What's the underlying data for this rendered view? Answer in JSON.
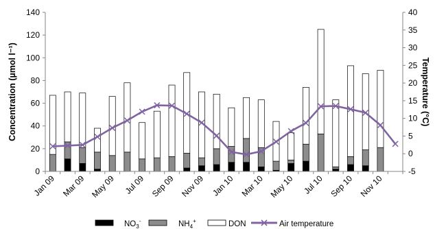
{
  "chart_data": {
    "type": "bar",
    "stacked": true,
    "categories": [
      "Jan 09",
      "Feb 09",
      "Mar 09",
      "Apr 09",
      "May 09",
      "Jun 09",
      "Jul 09",
      "Aug 09",
      "Sep 09",
      "Oct 09",
      "Nov 09",
      "Dec 09",
      "Jan 10",
      "Feb 10",
      "Mar 10",
      "Apr 10",
      "May 10",
      "Jun 10",
      "Jul 10",
      "Aug 10",
      "Sep 10",
      "Oct 10",
      "Nov 10",
      "Dec 10"
    ],
    "x_tick_labels": [
      "Jan 09",
      "Mar 09",
      "May 09",
      "Jul 09",
      "Sep 09",
      "Nov 09",
      "Jan 10",
      "Mar 10",
      "May 10",
      "Jul 10",
      "Sep 10",
      "Nov 10"
    ],
    "series": [
      {
        "name": "NO3-",
        "color": "#000000",
        "values": [
          0,
          11,
          7,
          2,
          0,
          0,
          0,
          0,
          0,
          3,
          5,
          6,
          8,
          8,
          4,
          1,
          7,
          9,
          0,
          2,
          6,
          5,
          0,
          0
        ]
      },
      {
        "name": "NH4+",
        "color": "#8c8c8c",
        "values": [
          15,
          15,
          14,
          15,
          14,
          17,
          11,
          12,
          13,
          13,
          7,
          14,
          14,
          21,
          17,
          8,
          3,
          15,
          33,
          2,
          7,
          14,
          21,
          0
        ]
      },
      {
        "name": "DON",
        "color": "#ffffff",
        "values": [
          52,
          44,
          48,
          21,
          52,
          61,
          32,
          41,
          63,
          71,
          58,
          48,
          34,
          36,
          42,
          35,
          24,
          50,
          92,
          59,
          80,
          67,
          68,
          0
        ]
      }
    ],
    "bar_indices": [
      0,
      1,
      2,
      3,
      4,
      5,
      6,
      7,
      8,
      9,
      10,
      11,
      12,
      13,
      14,
      15,
      16,
      17,
      18,
      19,
      20,
      21,
      22
    ],
    "line_series": {
      "name": "Air temperature",
      "color": "#8064a2",
      "axis": "right",
      "values": [
        2.1,
        2.3,
        2.5,
        4.8,
        7.3,
        9.4,
        11.9,
        13.7,
        13.6,
        11.3,
        8.8,
        5.1,
        0.5,
        -0.2,
        0.7,
        3.4,
        6.4,
        8.7,
        13.4,
        13.5,
        12.6,
        11.6,
        8.1,
        2.8
      ]
    },
    "xlabel": "",
    "ylabel": "Concentration (µmol l⁻¹)",
    "y2label": "Temperature (°C)",
    "ylim": [
      0,
      140
    ],
    "y2lim": [
      -5,
      40
    ],
    "yticks": [
      0,
      20,
      40,
      60,
      80,
      100,
      120,
      140
    ],
    "y2ticks": [
      -5,
      0,
      5,
      10,
      15,
      20,
      25,
      30,
      35,
      40
    ],
    "grid": false,
    "legend_position": "bottom"
  },
  "legend": {
    "no3_label": "NO",
    "no3_sub": "3",
    "no3_sup": "-",
    "nh4_label": "NH",
    "nh4_sub": "4",
    "nh4_sup": "+",
    "don_label": "DON",
    "temp_label": "Air temperature"
  }
}
